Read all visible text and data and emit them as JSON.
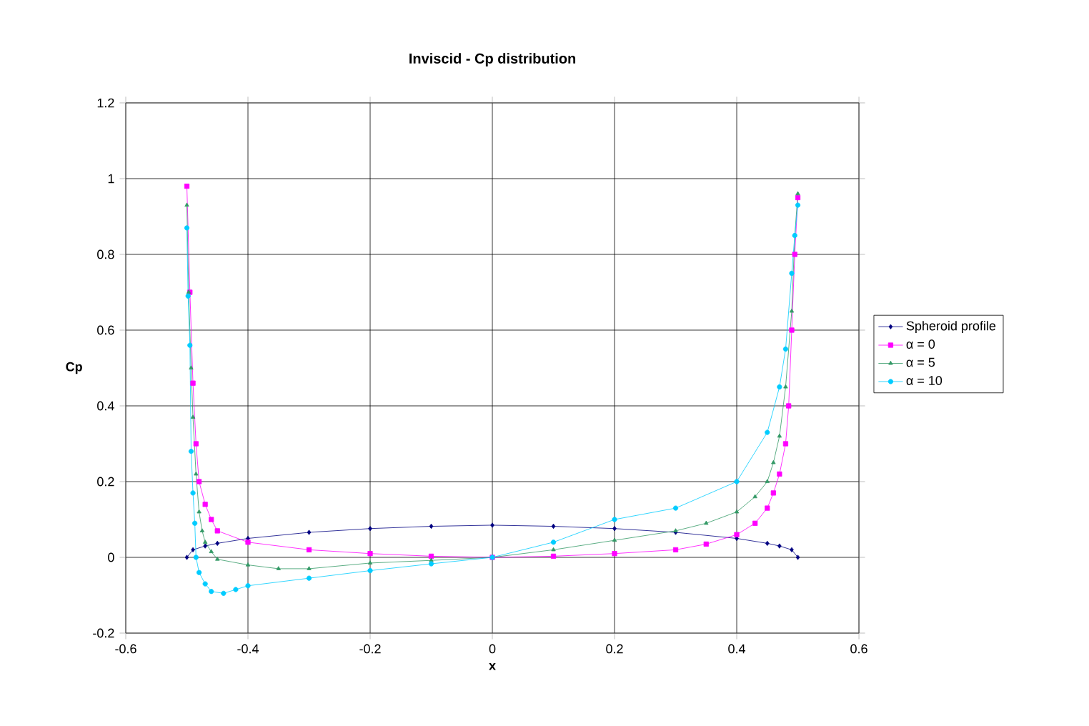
{
  "chart_data": {
    "type": "line",
    "title": "Inviscid - Cp distribution",
    "xlabel": "x",
    "ylabel": "Cp",
    "xlim": [
      -0.6,
      0.6
    ],
    "xticks": [
      -0.6,
      -0.4,
      -0.2,
      0,
      0.2,
      0.4,
      0.6
    ],
    "ylim": [
      -0.2,
      1.2
    ],
    "yticks": [
      -0.2,
      0,
      0.2,
      0.4,
      0.6,
      0.8,
      1,
      1.2
    ],
    "grid": true,
    "legend": "right",
    "line_style": "solid",
    "series": [
      {
        "name": "Spheroid profile",
        "color": "#000080",
        "marker": "diamond",
        "x": [
          -0.5,
          -0.49,
          -0.47,
          -0.45,
          -0.4,
          -0.3,
          -0.2,
          -0.1,
          0,
          0.1,
          0.2,
          0.3,
          0.4,
          0.45,
          0.47,
          0.49,
          0.5
        ],
        "values": [
          0,
          0.02,
          0.03,
          0.037,
          0.05,
          0.066,
          0.076,
          0.082,
          0.085,
          0.082,
          0.076,
          0.066,
          0.05,
          0.037,
          0.03,
          0.02,
          0
        ]
      },
      {
        "name": "α = 0",
        "color": "#ff00ff",
        "marker": "square",
        "x": [
          -0.5,
          -0.495,
          -0.49,
          -0.485,
          -0.48,
          -0.47,
          -0.46,
          -0.45,
          -0.4,
          -0.3,
          -0.2,
          -0.1,
          0,
          0.1,
          0.2,
          0.3,
          0.35,
          0.4,
          0.43,
          0.45,
          0.46,
          0.47,
          0.48,
          0.485,
          0.49,
          0.495,
          0.5
        ],
        "values": [
          0.98,
          0.7,
          0.46,
          0.3,
          0.2,
          0.14,
          0.1,
          0.07,
          0.04,
          0.02,
          0.01,
          0.003,
          0,
          0.003,
          0.01,
          0.02,
          0.035,
          0.06,
          0.09,
          0.13,
          0.17,
          0.22,
          0.3,
          0.4,
          0.6,
          0.8,
          0.95
        ]
      },
      {
        "name": "α = 5",
        "color": "#339966",
        "marker": "triangle",
        "x": [
          -0.5,
          -0.497,
          -0.493,
          -0.49,
          -0.485,
          -0.48,
          -0.475,
          -0.47,
          -0.46,
          -0.45,
          -0.4,
          -0.35,
          -0.3,
          -0.2,
          -0.1,
          0,
          0.1,
          0.2,
          0.3,
          0.35,
          0.4,
          0.43,
          0.45,
          0.46,
          0.47,
          0.48,
          0.49,
          0.495,
          0.5
        ],
        "values": [
          0.93,
          0.7,
          0.5,
          0.37,
          0.22,
          0.12,
          0.07,
          0.04,
          0.015,
          -0.005,
          -0.02,
          -0.03,
          -0.03,
          -0.015,
          -0.008,
          0,
          0.02,
          0.045,
          0.07,
          0.09,
          0.12,
          0.16,
          0.2,
          0.25,
          0.32,
          0.45,
          0.65,
          0.85,
          0.96
        ]
      },
      {
        "name": "α = 10",
        "color": "#00ccff",
        "marker": "circle",
        "x": [
          -0.5,
          -0.498,
          -0.495,
          -0.493,
          -0.49,
          -0.487,
          -0.485,
          -0.48,
          -0.47,
          -0.46,
          -0.44,
          -0.42,
          -0.4,
          -0.3,
          -0.2,
          -0.1,
          0,
          0.1,
          0.2,
          0.3,
          0.4,
          0.45,
          0.47,
          0.48,
          0.49,
          0.495,
          0.5
        ],
        "values": [
          0.87,
          0.69,
          0.56,
          0.28,
          0.17,
          0.09,
          0,
          -0.04,
          -0.07,
          -0.09,
          -0.095,
          -0.085,
          -0.075,
          -0.055,
          -0.035,
          -0.017,
          0,
          0.04,
          0.1,
          0.13,
          0.2,
          0.33,
          0.45,
          0.55,
          0.75,
          0.85,
          0.93
        ]
      }
    ]
  }
}
